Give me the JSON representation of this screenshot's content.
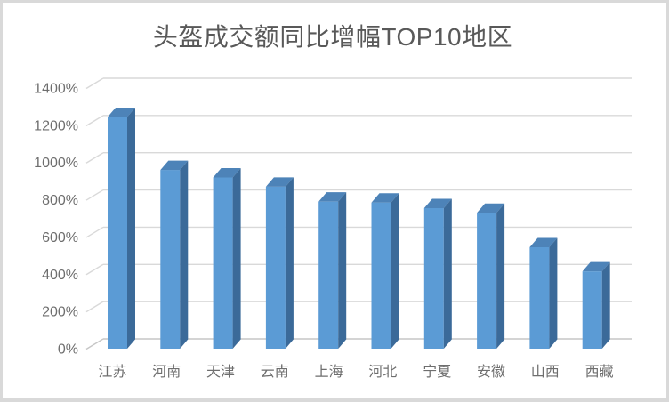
{
  "window": {
    "background": "#ffffff",
    "border_color": "#d9d9d9"
  },
  "chart_data": {
    "type": "bar",
    "style": "3d-column",
    "title": "头盔成交额同比增幅TOP10地区",
    "categories": [
      "江苏",
      "河南",
      "天津",
      "云南",
      "上海",
      "河北",
      "宁夏",
      "安徽",
      "山西",
      "西藏"
    ],
    "values": [
      1245,
      960,
      920,
      870,
      790,
      785,
      755,
      730,
      545,
      415
    ],
    "unit": "%",
    "xlabel": "",
    "ylabel": "",
    "ylim": [
      0,
      1400
    ],
    "ytick_step": 200,
    "ytick_labels": [
      "0%",
      "200%",
      "400%",
      "600%",
      "800%",
      "1000%",
      "1200%",
      "1400%"
    ],
    "legend": "none",
    "grid": true,
    "colors": {
      "bar_front": "#5B9BD5",
      "bar_top": "#4D83B8",
      "bar_side": "#3B6A99",
      "gridline": "#D9D9D9",
      "axis_line": "#C6C6C6",
      "title_text": "#595959",
      "tick_text": "#6E6E6E"
    }
  }
}
